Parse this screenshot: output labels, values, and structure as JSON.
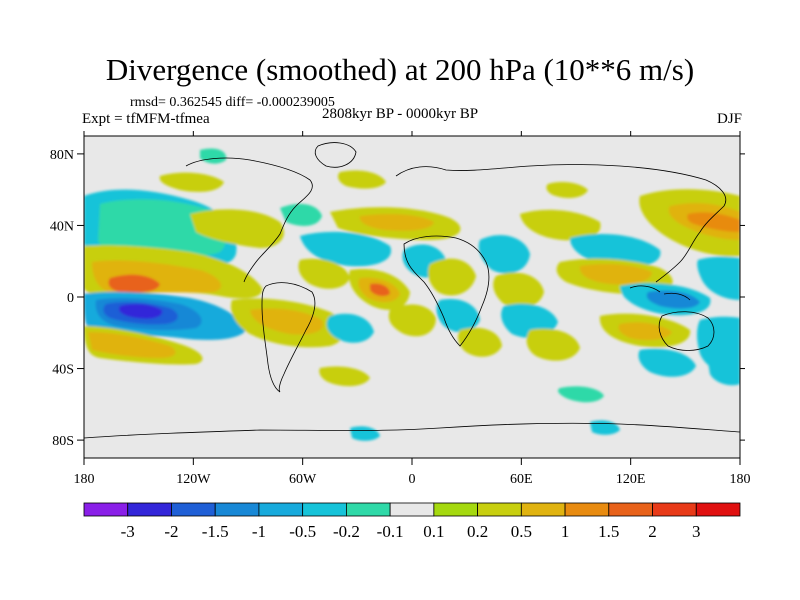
{
  "title": "Divergence (smoothed) at 200 hPa (10**6 m/s)",
  "stats": "rmsd= 0.362545 diff= -0.000239005",
  "experiment": "Expt = tfMFM-tfmea",
  "period": "2808kyr BP - 0000kyr BP",
  "season": "DJF",
  "map": {
    "projection": "cylindrical equidistant",
    "background_color": "#e8e8e8",
    "lat_ticks": [
      "80N",
      "40N",
      "0",
      "40S",
      "80S"
    ],
    "lat_values": [
      80,
      40,
      0,
      -40,
      -80
    ],
    "lon_ticks": [
      "180",
      "120W",
      "60W",
      "0",
      "60E",
      "120E",
      "180"
    ],
    "lon_values": [
      -180,
      -120,
      -60,
      0,
      60,
      120,
      180
    ]
  },
  "colorbar": {
    "labels": [
      "-3",
      "-2",
      "-1.5",
      "-1",
      "-0.5",
      "-0.2",
      "-0.1",
      "0.1",
      "0.2",
      "0.5",
      "1",
      "1.5",
      "2",
      "3"
    ],
    "colors": [
      "#8a1fe8",
      "#3326d9",
      "#1f5fd6",
      "#1888d6",
      "#17aadc",
      "#16c3d9",
      "#2fd9a8",
      "#e8e8e8",
      "#a5d90f",
      "#c8cf0f",
      "#e0b310",
      "#e88b10",
      "#e8621a",
      "#e83a18",
      "#e01010"
    ]
  }
}
